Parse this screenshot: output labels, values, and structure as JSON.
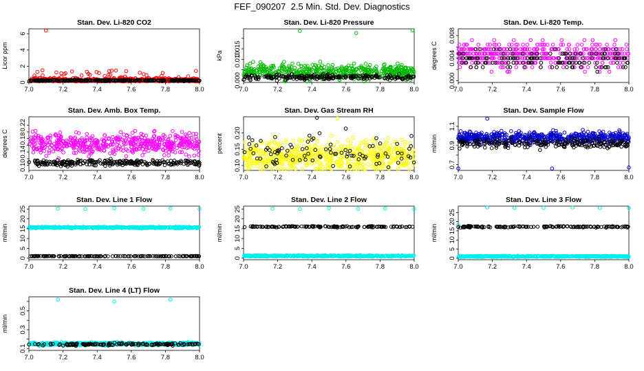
{
  "figure": {
    "title": "FEF_090207  2.5 Min. Std. Dev. Diagnostics"
  },
  "chart_data": [
    {
      "id": "co2",
      "type": "scatter",
      "title": "Stan. Dev. Li-820 CO2",
      "ylabel": "Licor ppm",
      "xlim": [
        7.0,
        8.0
      ],
      "ylim": [
        0,
        6.6
      ],
      "xticks": [
        7.0,
        7.2,
        7.4,
        7.6,
        7.8,
        8.0
      ],
      "xticklabels": [
        "7.0",
        "7.2",
        "7.4",
        "7.6",
        "7.8",
        "8.0"
      ],
      "yticks": [
        0,
        2,
        4,
        6
      ],
      "yticklabels": [
        "0",
        "2",
        "4",
        "6"
      ],
      "series": [
        {
          "color": "#ff0000",
          "n": 420,
          "base": 0.3,
          "spread": 0.25,
          "spike_prob": 0.12,
          "spike_max": 1.2,
          "outliers": [
            [
              7.1,
              6.4
            ],
            [
              7.05,
              1.3
            ],
            [
              7.08,
              1.5
            ],
            [
              7.57,
              1.4
            ],
            [
              7.65,
              1.2
            ]
          ]
        },
        {
          "color": "#000000",
          "n": 260,
          "base": 0.25,
          "spread": 0.08,
          "spike_prob": 0,
          "spike_max": 0,
          "outliers": []
        }
      ]
    },
    {
      "id": "pressure",
      "type": "scatter",
      "title": "Stan. Dev. Li-820 Pressure",
      "ylabel": "kPa",
      "xlim": [
        7.0,
        8.0
      ],
      "ylim": [
        -0.001,
        0.0245
      ],
      "xticks": [
        7.0,
        7.2,
        7.4,
        7.6,
        7.8,
        8.0
      ],
      "xticklabels": [
        "7.0",
        "7.2",
        "7.4",
        "7.6",
        "7.8",
        "8.0"
      ],
      "yticks": [
        0.0,
        0.005,
        0.01,
        0.015,
        0.02
      ],
      "yticklabels": [
        "0.000",
        "",
        "0.010",
        "0.015",
        ""
      ],
      "series": [
        {
          "color": "#00bb00",
          "n": 520,
          "base": 0.004,
          "spread": 0.0035,
          "spike_prob": 0,
          "spike_max": 0,
          "outliers": [
            [
              7.33,
              0.0235
            ],
            [
              7.66,
              0.0225
            ],
            [
              7.99,
              0.0238
            ]
          ]
        },
        {
          "color": "#000000",
          "n": 220,
          "base": 0.0015,
          "spread": 0.0012,
          "spike_prob": 0,
          "spike_max": 0,
          "outliers": []
        }
      ]
    },
    {
      "id": "temp",
      "type": "scatter",
      "title": "Stan. Dev. Li-820 Temp.",
      "ylabel": "degrees C",
      "xlim": [
        7.0,
        8.0
      ],
      "ylim": [
        -0.0003,
        0.0092
      ],
      "xticks": [
        7.0,
        7.2,
        7.4,
        7.6,
        7.8,
        8.0
      ],
      "xticklabels": [
        "7.0",
        "7.2",
        "7.4",
        "7.6",
        "7.8",
        "8.0"
      ],
      "yticks": [
        0.0,
        0.002,
        0.004,
        0.006,
        0.008
      ],
      "yticklabels": [
        "0.000",
        "",
        "0.004",
        "",
        "0.008"
      ],
      "series": [
        {
          "color": "#ff00ff",
          "n": 480,
          "base": 0.0045,
          "spread": 0.0022,
          "spike_prob": 0,
          "spike_max": 0,
          "quant": 0.0008,
          "outliers": []
        },
        {
          "color": "#000000",
          "n": 140,
          "base": 0.0038,
          "spread": 0.0018,
          "spike_prob": 0,
          "spike_max": 0,
          "quant": 0.0008,
          "outliers": []
        }
      ]
    },
    {
      "id": "boxtemp",
      "type": "scatter",
      "title": "Stan. Dev. Amb. Box Temp.",
      "ylabel": "degrees C",
      "xlim": [
        7.0,
        8.0
      ],
      "ylim": [
        0.085,
        0.245
      ],
      "xticks": [
        7.0,
        7.2,
        7.4,
        7.6,
        7.8,
        8.0
      ],
      "xticklabels": [
        "7.0",
        "7.2",
        "7.4",
        "7.6",
        "7.8",
        "8.0"
      ],
      "yticks": [
        0.1,
        0.12,
        0.14,
        0.16,
        0.18,
        0.2,
        0.22
      ],
      "yticklabels": [
        "0.10",
        "",
        "0.14",
        "",
        "0.18",
        "",
        "0.22"
      ],
      "series": [
        {
          "color": "#ff00ff",
          "n": 520,
          "base": 0.165,
          "spread": 0.03,
          "spike_prob": 0,
          "spike_max": 0,
          "outliers": []
        },
        {
          "color": "#000000",
          "n": 260,
          "base": 0.108,
          "spread": 0.008,
          "spike_prob": 0,
          "spike_max": 0,
          "outliers": []
        }
      ]
    },
    {
      "id": "rh",
      "type": "scatter",
      "title": "Stan. Dev. Gas Stream RH",
      "ylabel": "percent",
      "xlim": [
        7.0,
        8.0
      ],
      "ylim": [
        0.085,
        0.25
      ],
      "xticks": [
        7.0,
        7.2,
        7.4,
        7.6,
        7.8,
        8.0
      ],
      "xticklabels": [
        "7.0",
        "7.2",
        "7.4",
        "7.6",
        "7.8",
        "8.0"
      ],
      "yticks": [
        0.1,
        0.15,
        0.2
      ],
      "yticklabels": [
        "0.10",
        "0.15",
        "0.20"
      ],
      "series": [
        {
          "color": "#ffff00",
          "n": 620,
          "base": 0.13,
          "spread": 0.045,
          "spike_prob": 0,
          "spike_max": 0,
          "outliers": [
            [
              7.55,
              0.245
            ]
          ]
        },
        {
          "color": "#000000",
          "n": 90,
          "base": 0.14,
          "spread": 0.05,
          "spike_prob": 0,
          "spike_max": 0,
          "outliers": [
            [
              7.43,
              0.247
            ]
          ]
        }
      ]
    },
    {
      "id": "sampleflow",
      "type": "scatter",
      "title": "Stan. Dev. Sample Flow",
      "ylabel": "ml/min",
      "xlim": [
        7.0,
        8.0
      ],
      "ylim": [
        0.64,
        1.2
      ],
      "xticks": [
        7.0,
        7.2,
        7.4,
        7.6,
        7.8,
        8.0
      ],
      "xticklabels": [
        "7.0",
        "7.2",
        "7.4",
        "7.6",
        "7.8",
        "8.0"
      ],
      "yticks": [
        0.7,
        0.8,
        0.9,
        1.0,
        1.1
      ],
      "yticklabels": [
        "0.7",
        "",
        "0.9",
        "",
        "1.1"
      ],
      "series": [
        {
          "color": "#0000cc",
          "n": 560,
          "base": 0.98,
          "spread": 0.06,
          "spike_prob": 0,
          "spike_max": 0,
          "outliers": [
            [
              7.17,
              1.18
            ],
            [
              7.0,
              0.66
            ],
            [
              7.55,
              0.66
            ],
            [
              8.0,
              0.67
            ]
          ]
        },
        {
          "color": "#000000",
          "n": 200,
          "base": 0.92,
          "spread": 0.05,
          "spike_prob": 0,
          "spike_max": 0,
          "outliers": []
        }
      ]
    },
    {
      "id": "line1",
      "type": "scatter",
      "title": "Stan. Dev. Line 1 Flow",
      "ylabel": "ml/min",
      "xlim": [
        7.0,
        8.0
      ],
      "ylim": [
        -0.8,
        26.5
      ],
      "xticks": [
        7.0,
        7.2,
        7.4,
        7.6,
        7.8,
        8.0
      ],
      "xticklabels": [
        "7.0",
        "7.2",
        "7.4",
        "7.6",
        "7.8",
        "8.0"
      ],
      "yticks": [
        0,
        5,
        10,
        15,
        20,
        25
      ],
      "yticklabels": [
        "0",
        "5",
        "10",
        "15",
        "20",
        "25"
      ],
      "series": [
        {
          "color": "#00eeee",
          "n": 560,
          "base": 15.6,
          "spread": 0.35,
          "spike_prob": 0,
          "spike_max": 0,
          "outliers": [
            [
              7.17,
              25.2
            ],
            [
              7.33,
              25.0
            ],
            [
              7.5,
              25.4
            ],
            [
              7.67,
              25.1
            ],
            [
              7.83,
              25.3
            ],
            [
              8.0,
              25.0
            ]
          ]
        },
        {
          "color": "#000000",
          "n": 140,
          "base": 1.0,
          "spread": 0.12,
          "spike_prob": 0,
          "spike_max": 0,
          "outliers": []
        }
      ]
    },
    {
      "id": "line2",
      "type": "scatter",
      "title": "Stan. Dev. Line 2 Flow",
      "ylabel": "ml/min",
      "xlim": [
        7.0,
        8.0
      ],
      "ylim": [
        -0.8,
        26.5
      ],
      "xticks": [
        7.0,
        7.2,
        7.4,
        7.6,
        7.8,
        8.0
      ],
      "xticklabels": [
        "7.0",
        "7.2",
        "7.4",
        "7.6",
        "7.8",
        "8.0"
      ],
      "yticks": [
        0,
        5,
        10,
        15,
        20,
        25
      ],
      "yticklabels": [
        "0",
        "5",
        "10",
        "15",
        "20",
        "25"
      ],
      "series": [
        {
          "color": "#00eeee",
          "n": 560,
          "base": 1.1,
          "spread": 0.3,
          "spike_prob": 0,
          "spike_max": 0,
          "outliers": [
            [
              7.17,
              25.2
            ],
            [
              7.33,
              25.0
            ],
            [
              7.5,
              25.4
            ],
            [
              7.67,
              25.1
            ],
            [
              7.83,
              25.3
            ],
            [
              8.0,
              25.0
            ]
          ]
        },
        {
          "color": "#000000",
          "n": 140,
          "base": 16.0,
          "spread": 0.3,
          "spike_prob": 0,
          "spike_max": 0,
          "outliers": []
        }
      ]
    },
    {
      "id": "line3",
      "type": "scatter",
      "title": "Stan. Dev. Line 3 Flow",
      "ylabel": "ml/min",
      "xlim": [
        7.0,
        8.0
      ],
      "ylim": [
        -0.8,
        28.5
      ],
      "xticks": [
        7.0,
        7.2,
        7.4,
        7.6,
        7.8,
        8.0
      ],
      "xticklabels": [
        "7.0",
        "7.2",
        "7.4",
        "7.6",
        "7.8",
        "8.0"
      ],
      "yticks": [
        0,
        5,
        10,
        15,
        20,
        25
      ],
      "yticklabels": [
        "0",
        "5",
        "10",
        "15",
        "20",
        "25"
      ],
      "series": [
        {
          "color": "#00eeee",
          "n": 560,
          "base": 1.0,
          "spread": 0.3,
          "spike_prob": 0,
          "spike_max": 0,
          "outliers": [
            [
              7.0,
              18.2
            ],
            [
              7.17,
              27.8
            ],
            [
              7.33,
              27.5
            ],
            [
              7.5,
              27.6
            ],
            [
              7.67,
              27.8
            ],
            [
              7.83,
              27.5
            ],
            [
              8.0,
              27.4
            ]
          ]
        },
        {
          "color": "#000000",
          "n": 140,
          "base": 17.2,
          "spread": 0.35,
          "spike_prob": 0,
          "spike_max": 0,
          "outliers": []
        }
      ]
    },
    {
      "id": "line4",
      "type": "scatter",
      "title": "Stan. Dev. Line 4 (LT) Flow",
      "ylabel": "ml/min",
      "xlim": [
        7.0,
        8.0
      ],
      "ylim": [
        0.08,
        0.65
      ],
      "xticks": [
        7.0,
        7.2,
        7.4,
        7.6,
        7.8,
        8.0
      ],
      "xticklabels": [
        "7.0",
        "7.2",
        "7.4",
        "7.6",
        "7.8",
        "8.0"
      ],
      "yticks": [
        0.1,
        0.2,
        0.3,
        0.4,
        0.5,
        0.6
      ],
      "yticklabels": [
        "0.1",
        "",
        "0.3",
        "",
        "0.5",
        ""
      ],
      "series": [
        {
          "color": "#00eeee",
          "n": 560,
          "base": 0.15,
          "spread": 0.014,
          "spike_prob": 0,
          "spike_max": 0,
          "outliers": [
            [
              7.17,
              0.62
            ],
            [
              7.5,
              0.6
            ],
            [
              7.83,
              0.62
            ]
          ]
        },
        {
          "color": "#000000",
          "n": 140,
          "base": 0.145,
          "spread": 0.012,
          "spike_prob": 0,
          "spike_max": 0,
          "outliers": []
        }
      ]
    }
  ]
}
